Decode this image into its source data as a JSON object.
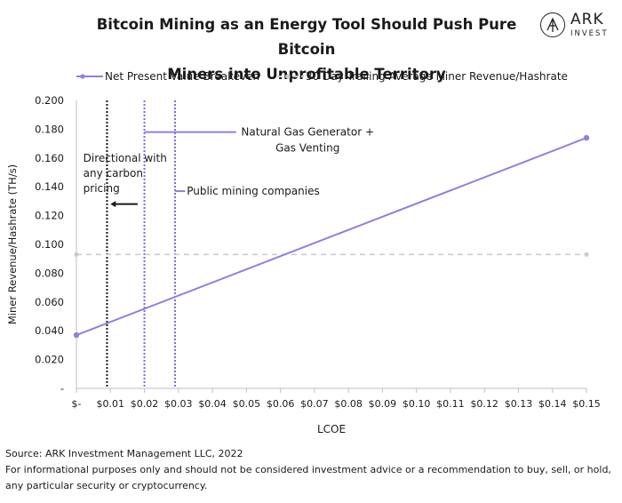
{
  "header": {
    "title_line1": "Bitcoin Mining as an Energy Tool Should Push Pure Bitcoin",
    "title_line2": "Miners into Unprofitable Territory"
  },
  "logo": {
    "name": "ARK",
    "sub": "INVEST"
  },
  "footer": {
    "source": "Source: ARK Investment Management LLC, 2022",
    "disclaimer_line1": "For informational purposes only and should not be considered investment advice or a recommendation to buy, sell, or hold,",
    "disclaimer_line2": "any particular security or cryptocurrency."
  },
  "chart_data": {
    "type": "line",
    "title": "Bitcoin Mining as an Energy Tool Should Push Pure Bitcoin Miners into Unprofitable Territory",
    "xlabel": "LCOE",
    "ylabel": "Miner Revenue/Hashrate (TH/s)",
    "xlim": [
      0,
      0.15
    ],
    "ylim": [
      0,
      0.2
    ],
    "x_ticks": [
      0,
      0.01,
      0.02,
      0.03,
      0.04,
      0.05,
      0.06,
      0.07,
      0.08,
      0.09,
      0.1,
      0.11,
      0.12,
      0.13,
      0.14,
      0.15
    ],
    "x_tick_labels": [
      "$-",
      "$0.01",
      "$0.02",
      "$0.03",
      "$0.04",
      "$0.05",
      "$0.06",
      "$0.07",
      "$0.08",
      "$0.09",
      "$0.10",
      "$0.11",
      "$0.12",
      "$0.13",
      "$0.14",
      "$0.15"
    ],
    "y_ticks": [
      0,
      0.02,
      0.04,
      0.06,
      0.08,
      0.1,
      0.12,
      0.14,
      0.16,
      0.18,
      0.2
    ],
    "y_tick_labels": [
      "-",
      "0.020",
      "0.040",
      "0.060",
      "0.080",
      "0.100",
      "0.120",
      "0.140",
      "0.160",
      "0.180",
      "0.200"
    ],
    "grid": false,
    "legend_position": "top",
    "series": [
      {
        "name": "Net Present Value Breakeven",
        "style": "solid-with-markers",
        "color": "#8b84d7",
        "x": [
          0,
          0.15
        ],
        "y": [
          0.037,
          0.174
        ]
      },
      {
        "name": "30 Day Trailing Average Miner Revenue/Hashrate",
        "style": "dashed",
        "color": "#c9c9d3",
        "x": [
          0,
          0.15
        ],
        "y": [
          0.093,
          0.093
        ]
      }
    ],
    "vlines": [
      {
        "x": 0.009,
        "color": "#1a1a1a",
        "style": "dotted"
      },
      {
        "x": 0.02,
        "color": "#7b6fd6",
        "style": "dotted"
      },
      {
        "x": 0.029,
        "color": "#7b6fd6",
        "style": "dotted"
      }
    ],
    "annotations": [
      {
        "id": "gas",
        "lines": [
          "Natural Gas Generator +",
          "Gas Venting"
        ],
        "line_color": "#8b84d7",
        "line_x": [
          0.02,
          0.047
        ],
        "line_y": 0.178,
        "text_x": 0.068,
        "text_y": 0.178
      },
      {
        "id": "public",
        "lines": [
          "Public mining companies"
        ],
        "line_color": "#8b84d7",
        "line_x": [
          0.029,
          0.032
        ],
        "line_y": 0.137,
        "text_x": 0.052,
        "text_y": 0.137
      },
      {
        "id": "carbon",
        "lines": [
          "Directional with",
          "any carbon",
          "pricing"
        ],
        "line_color": "#1a1a1a",
        "arrow_from": 0.018,
        "arrow_to": 0.01,
        "arrow_y": 0.128,
        "text_x": 0.002,
        "text_y": 0.16
      }
    ],
    "colors": {
      "npv": "#8b84d7",
      "trailing": "#c9c9d3",
      "public": "#7b6fd6",
      "carbon": "#1a1a1a",
      "axis": "#bfbfbf"
    }
  }
}
